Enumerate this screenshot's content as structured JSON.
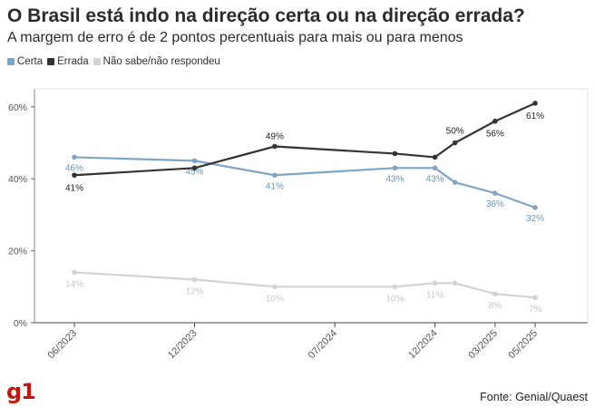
{
  "header": {
    "title": "O Brasil está indo na direção certa ou na direção errada?",
    "subtitle": "A margem de erro é de 2 pontos percentuais para mais ou para menos"
  },
  "footer": {
    "logo": "g1",
    "source": "Fonte: Genial/Quaest"
  },
  "colors": {
    "certa": "#7ea6c4",
    "errada": "#333333",
    "nao_sabe": "#d3d3d3",
    "brand": "#c4170c"
  },
  "chart_data": {
    "type": "line",
    "title": "O Brasil está indo na direção certa ou na direção errada?",
    "subtitle": "A margem de erro é de 2 pontos percentuais para mais ou para menos",
    "xlabel": "",
    "ylabel": "",
    "ylim": [
      0,
      65
    ],
    "y_ticks": [
      0,
      20,
      40,
      60
    ],
    "y_tick_labels": [
      "0%",
      "20%",
      "40%",
      "60%"
    ],
    "x_axis_type": "date",
    "x_ticks": [
      "2023-06",
      "2023-12",
      "2024-07",
      "2024-12",
      "2025-03",
      "2025-05"
    ],
    "x_tick_labels": [
      "06/2023",
      "12/2023",
      "07/2024",
      "12/2024",
      "03/2025",
      "05/2025"
    ],
    "x_range": [
      "2023-06",
      "2025-05"
    ],
    "x": [
      "2023-06",
      "2023-12",
      "2024-04",
      "2024-10",
      "2024-12",
      "2025-01",
      "2025-03",
      "2025-05"
    ],
    "legend_position": "top-left",
    "grid": false,
    "series": [
      {
        "name": "Certa",
        "color": "#7ea6c4",
        "values": [
          46,
          45,
          41,
          43,
          43,
          39,
          36,
          32
        ],
        "labels": [
          "46%",
          "45%",
          "41%",
          "43%",
          "43%",
          "",
          "36%",
          "32%"
        ]
      },
      {
        "name": "Errada",
        "color": "#333333",
        "values": [
          41,
          43,
          49,
          47,
          46,
          50,
          56,
          61
        ],
        "labels": [
          "41%",
          "",
          "49%",
          "",
          "",
          "50%",
          "56%",
          "61%"
        ]
      },
      {
        "name": "Não sabe/não respondeu",
        "color": "#d3d3d3",
        "values": [
          14,
          12,
          10,
          10,
          11,
          11,
          8,
          7
        ],
        "labels": [
          "14%",
          "12%",
          "10%",
          "10%",
          "11%",
          "",
          "8%",
          "7%"
        ]
      }
    ]
  }
}
